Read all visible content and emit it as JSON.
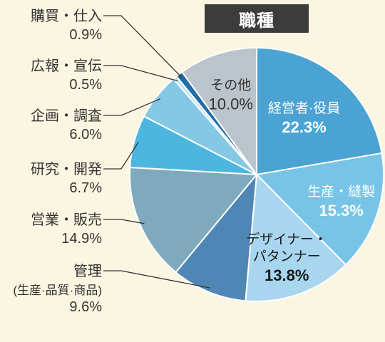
{
  "chart_data": {
    "type": "pie",
    "title": "職種",
    "unit": "%",
    "slices": [
      {
        "label": "経営者·役員",
        "value": 22.3,
        "value_text": "22.3%",
        "color": "#4ba3d4",
        "label_color": "#ffffff"
      },
      {
        "label": "生産・縫製",
        "value": 15.3,
        "value_text": "15.3%",
        "color": "#78c4e6",
        "label_color": "#ffffff"
      },
      {
        "label": "デザイナー・パタンナー",
        "value": 13.8,
        "value_text": "13.8%",
        "color": "#a8d6ef",
        "label_color": "#1a1a1a"
      },
      {
        "label": "管理 (生産·品質·商品)",
        "value": 9.6,
        "value_text": "9.6%",
        "color": "#4f86b5",
        "label_color": "#333333"
      },
      {
        "label": "営業・販売",
        "value": 14.9,
        "value_text": "14.9%",
        "color": "#7faabd",
        "label_color": "#333333"
      },
      {
        "label": "研究・開発",
        "value": 6.7,
        "value_text": "6.7%",
        "color": "#4db6df",
        "label_color": "#333333"
      },
      {
        "label": "企画・調査",
        "value": 6.0,
        "value_text": "6.0%",
        "color": "#85c8e6",
        "label_color": "#333333"
      },
      {
        "label": "広報・宣伝",
        "value": 0.5,
        "value_text": "0.5%",
        "color": "#bfe3f3",
        "label_color": "#333333"
      },
      {
        "label": "購買・仕入",
        "value": 0.9,
        "value_text": "0.9%",
        "color": "#1f6ea8",
        "label_color": "#333333"
      },
      {
        "label": "その他",
        "value": 10.0,
        "value_text": "10.0%",
        "color": "#bcc4cb",
        "label_color": "#333333"
      }
    ]
  }
}
